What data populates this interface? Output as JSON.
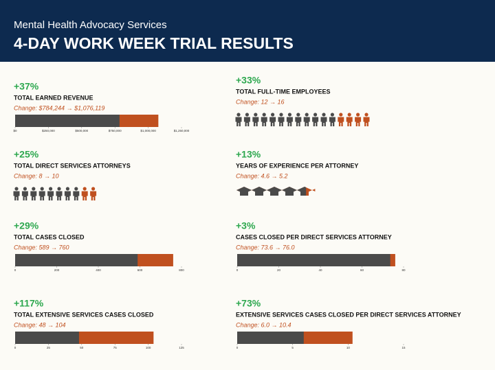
{
  "header": {
    "org": "Mental Health Advocacy Services",
    "title": "4-DAY WORK WEEK TRIAL RESULTS"
  },
  "chart_data": [
    {
      "type": "bar",
      "stat": "+37%",
      "title": "TOTAL EARNED REVENUE",
      "subtitle": "Change: $784,244 → $1,076,119",
      "values": [
        784244,
        1076119
      ],
      "colors": [
        "#4a4a4a",
        "#c0501f"
      ],
      "xlim": [
        0,
        1250000
      ],
      "xticks": [
        {
          "value": 0,
          "label": "$0"
        },
        {
          "value": 250000,
          "label": "$250,000"
        },
        {
          "value": 500000,
          "label": "$500,000"
        },
        {
          "value": 750000,
          "label": "$750,000"
        },
        {
          "value": 1000000,
          "label": "$1,000,000"
        },
        {
          "value": 1250000,
          "label": "$1,250,000"
        }
      ]
    },
    {
      "type": "pictogram",
      "icon": "person",
      "stat": "+33%",
      "title": "TOTAL FULL-TIME EMPLOYEES",
      "subtitle": "Change: 12 → 16",
      "values": [
        12,
        16
      ],
      "colors": [
        "#4a4a4a",
        "#c0501f"
      ]
    },
    {
      "type": "pictogram",
      "icon": "person",
      "stat": "+25%",
      "title": "TOTAL DIRECT SERVICES ATTORNEYS",
      "subtitle": "Change: 8 → 10",
      "values": [
        8,
        10
      ],
      "colors": [
        "#4a4a4a",
        "#c0501f"
      ]
    },
    {
      "type": "pictogram",
      "icon": "cap",
      "stat": "+13%",
      "title": "YEARS OF EXPERIENCE PER ATTORNEY",
      "subtitle": "Change: 4.6 → 5.2",
      "values": [
        4.6,
        5.2
      ],
      "colors": [
        "#4a4a4a",
        "#c0501f"
      ]
    },
    {
      "type": "bar",
      "stat": "+29%",
      "title": "TOTAL CASES CLOSED",
      "subtitle": "Change: 589 → 760",
      "values": [
        589,
        760
      ],
      "colors": [
        "#4a4a4a",
        "#c0501f"
      ],
      "xlim": [
        0,
        800
      ],
      "xticks": [
        0,
        200,
        400,
        600,
        800
      ]
    },
    {
      "type": "bar",
      "stat": "+3%",
      "title": "CASES CLOSED PER DIRECT SERVICES ATTORNEY",
      "subtitle": "Change: 73.6 → 76.0",
      "values": [
        73.6,
        76.0
      ],
      "colors": [
        "#4a4a4a",
        "#c0501f"
      ],
      "xlim": [
        0,
        80
      ],
      "xticks": [
        0,
        20,
        40,
        60,
        80
      ]
    },
    {
      "type": "bar",
      "stat": "+117%",
      "title": "TOTAL EXTENSIVE SERVICES CASES CLOSED",
      "subtitle": "Change: 48 → 104",
      "values": [
        48,
        104
      ],
      "colors": [
        "#4a4a4a",
        "#c0501f"
      ],
      "xlim": [
        0,
        125
      ],
      "xticks": [
        0,
        25,
        50,
        75,
        100,
        125
      ]
    },
    {
      "type": "bar",
      "stat": "+73%",
      "title": "EXTENSIVE SERVICES CASES CLOSED PER DIRECT SERVICES ATTORNEY",
      "subtitle": "Change: 6.0 → 10.4",
      "values": [
        6.0,
        10.4
      ],
      "colors": [
        "#4a4a4a",
        "#c0501f"
      ],
      "xlim": [
        0,
        15
      ],
      "xticks": [
        0,
        5,
        10,
        15
      ]
    }
  ]
}
